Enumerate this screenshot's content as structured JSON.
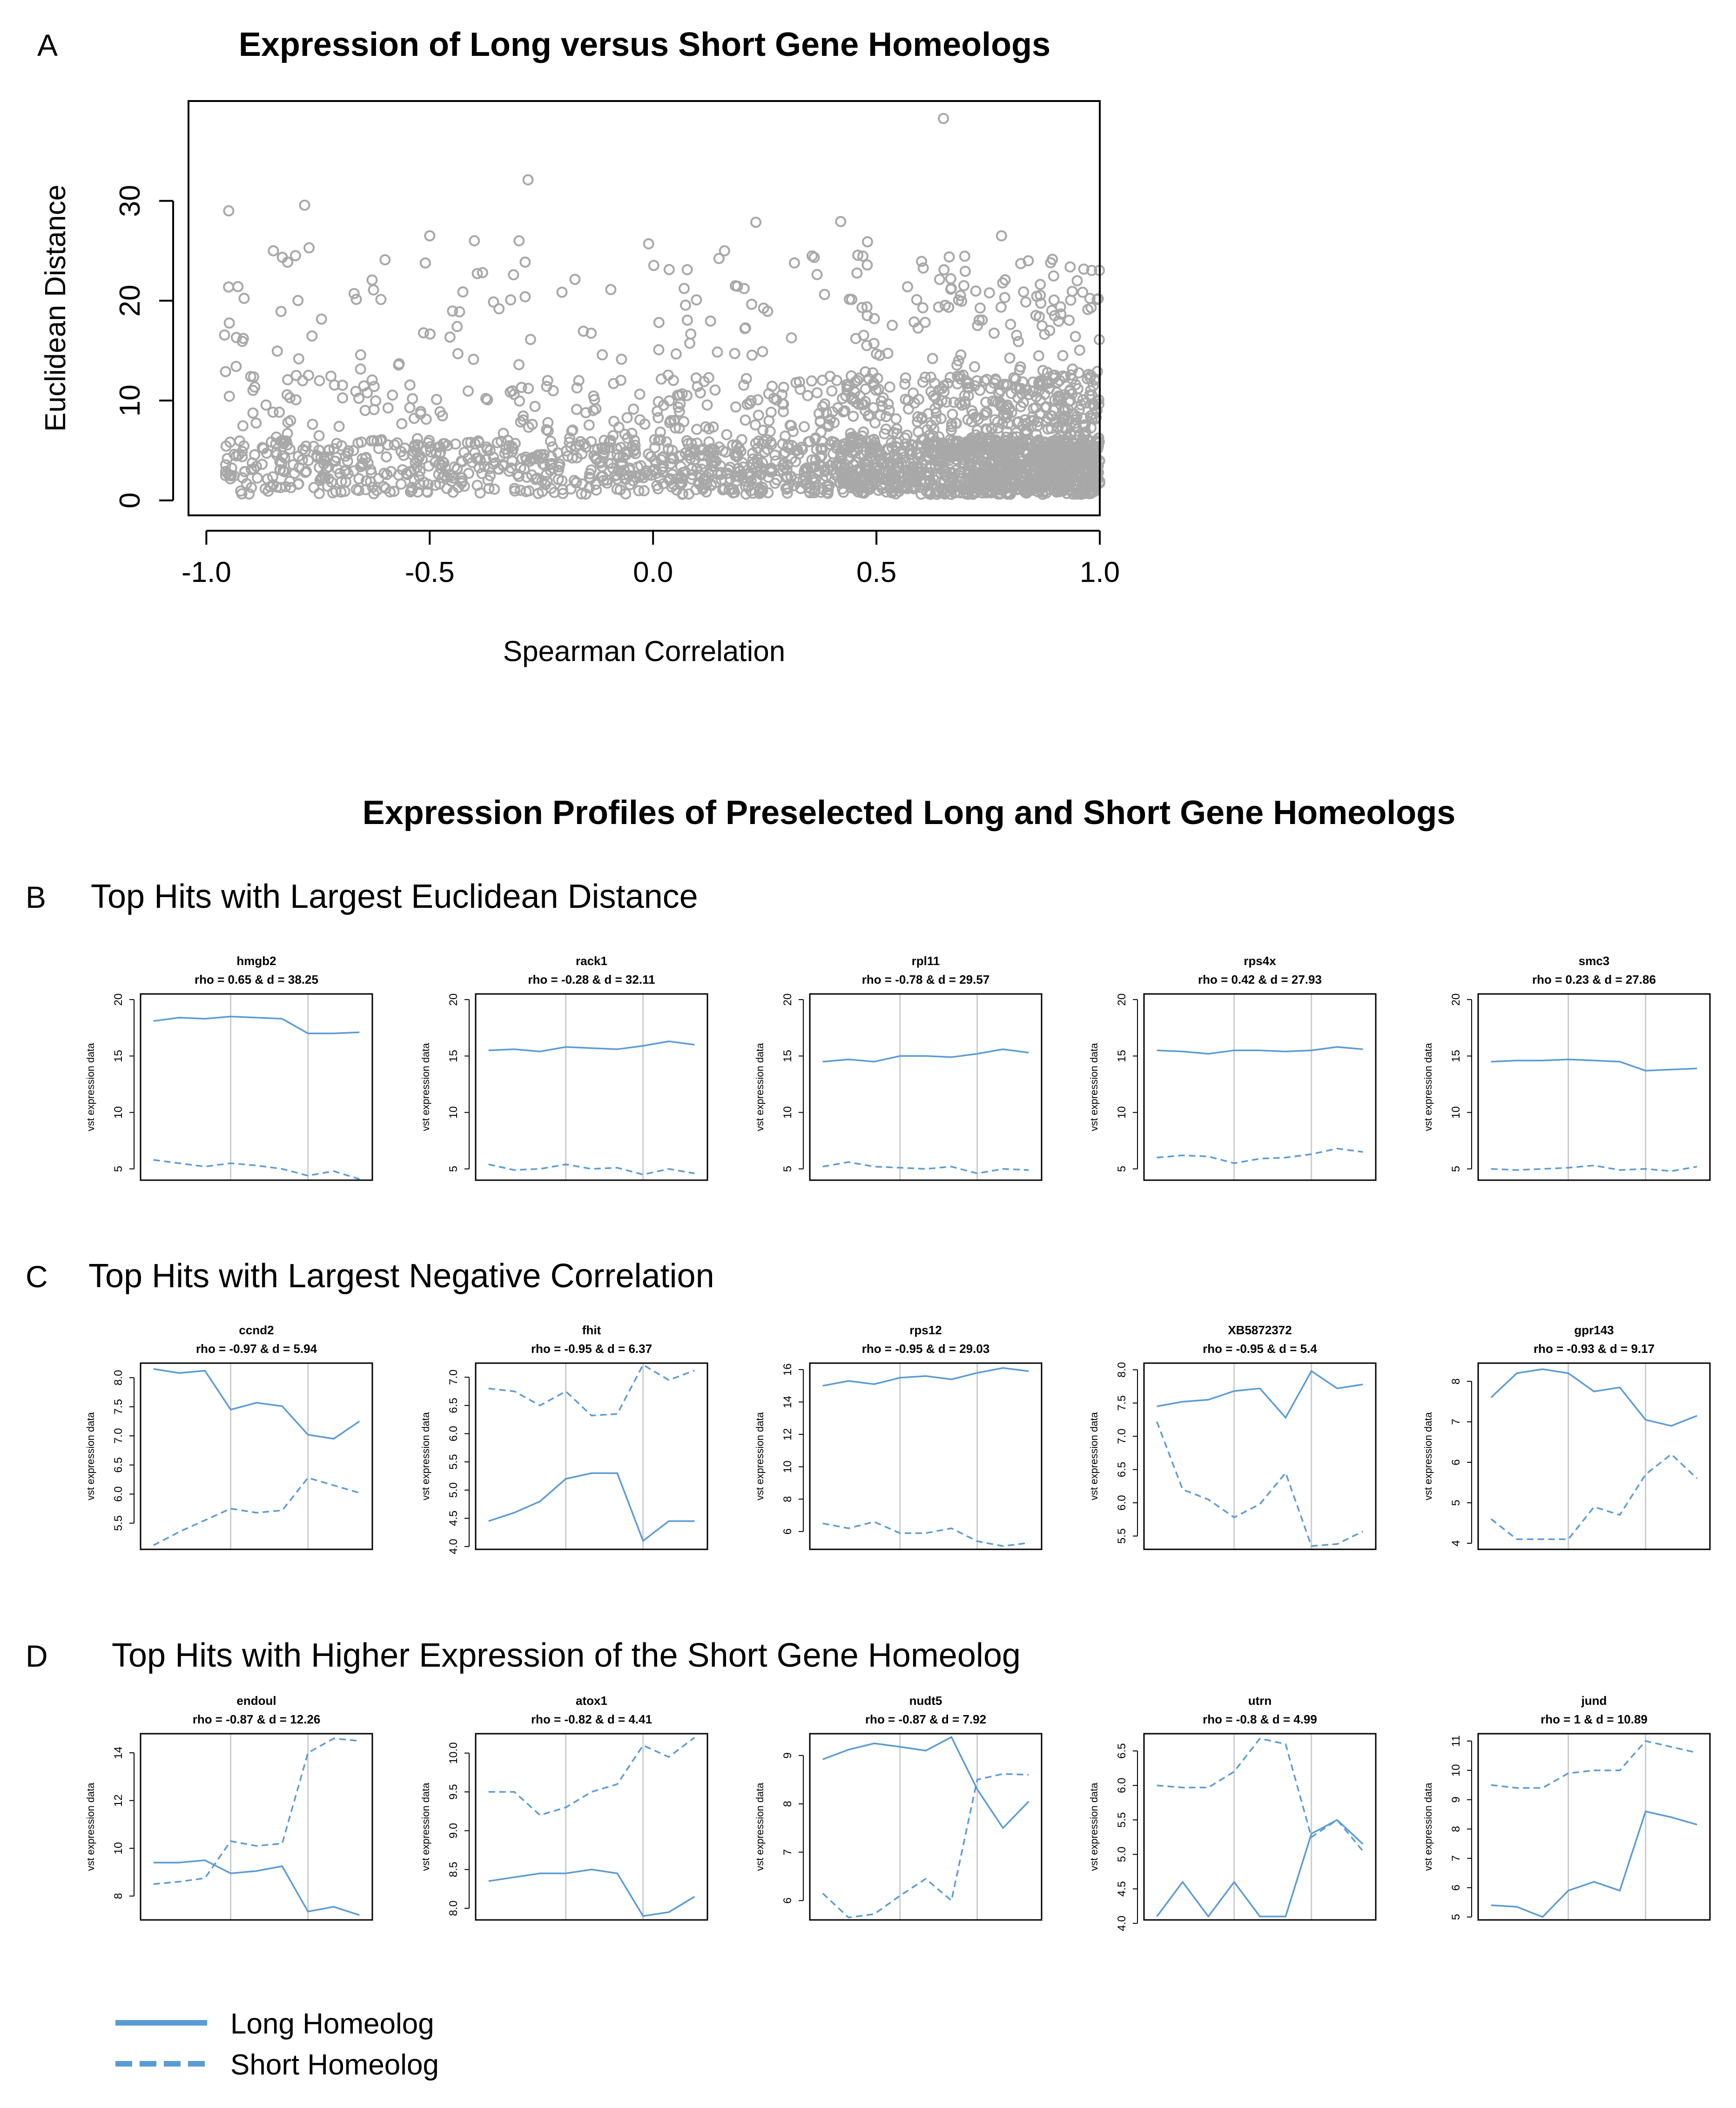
{
  "scatter": {
    "panel_letter": "A",
    "title": "Expression of Long versus Short Gene Homeologs",
    "xlabel": "Spearman Correlation",
    "ylabel": "Euclidean Distance",
    "xticks": [
      "-1.0",
      "-0.5",
      "0.0",
      "0.5",
      "1.0"
    ],
    "yticks": [
      "0",
      "10",
      "20",
      "30"
    ]
  },
  "profiles_title": "Expression Profiles of Preselected Long and Short Gene Homeologs",
  "sections": [
    {
      "letter": "B",
      "title": "Top Hits with Largest Euclidean Distance"
    },
    {
      "letter": "C",
      "title": "Top Hits with Largest Negative Correlation"
    },
    {
      "letter": "D",
      "title": "Top Hits with Higher Expression of the Short Gene Homeolog"
    }
  ],
  "panel_ylabel": "vst expression data",
  "legend": {
    "long": "Long Homeolog",
    "short": "Short Homeolog"
  },
  "colors": {
    "line": "#5b9bd5",
    "points": "#a8a8a8",
    "divider": "#cccccc"
  },
  "chart_data": [
    {
      "type": "scatter",
      "title": "Expression of Long versus Short Gene Homeologs",
      "xlabel": "Spearman Correlation",
      "ylabel": "Euclidean Distance",
      "xlim": [
        -1.04,
        1.0
      ],
      "ylim": [
        -1.5,
        40
      ],
      "n_points": 2600,
      "distribution": "many points with distances between 0 and 28 spread over rho -0.96 to 1.0, densest for rho 0.4-1.0 and distances below 10",
      "highlighted_points": [
        {
          "x": 0.65,
          "y": 38.25
        },
        {
          "x": -0.28,
          "y": 32.11
        },
        {
          "x": -0.78,
          "y": 29.57
        },
        {
          "x": 0.42,
          "y": 27.93
        },
        {
          "x": 0.23,
          "y": 27.86
        },
        {
          "x": -0.95,
          "y": 29.0
        },
        {
          "x": -0.5,
          "y": 26.5
        },
        {
          "x": -0.4,
          "y": 26.0
        },
        {
          "x": -0.01,
          "y": 25.7
        },
        {
          "x": 0.78,
          "y": 26.5
        },
        {
          "x": 0.48,
          "y": 25.9
        },
        {
          "x": -0.85,
          "y": 25.0
        },
        {
          "x": -0.77,
          "y": 25.3
        },
        {
          "x": -0.3,
          "y": 26.0
        },
        {
          "x": 0.16,
          "y": 25.0
        },
        {
          "x": 0.84,
          "y": 24.0
        },
        {
          "x": 0.89,
          "y": 23.8
        },
        {
          "x": -0.6,
          "y": 24.1
        }
      ]
    },
    {
      "type": "line",
      "gene": "hmgb2",
      "subtitle": "rho = 0.65 & d = 38.25",
      "ylim": [
        4,
        20.5
      ],
      "yticks": [
        5,
        10,
        15,
        20
      ],
      "dividers": [
        3.5,
        6.5
      ],
      "series": [
        {
          "name": "Long Homeolog",
          "values": [
            18.1,
            18.4,
            18.3,
            18.5,
            18.4,
            18.3,
            17.0,
            17.0,
            17.1
          ]
        },
        {
          "name": "Short Homeolog",
          "values": [
            5.8,
            5.5,
            5.2,
            5.5,
            5.3,
            5.0,
            4.4,
            4.8,
            4.1
          ]
        }
      ]
    },
    {
      "type": "line",
      "gene": "rack1",
      "subtitle": "rho = -0.28 & d = 32.11",
      "ylim": [
        4,
        20.5
      ],
      "yticks": [
        5,
        10,
        15,
        20
      ],
      "dividers": [
        3.5,
        6.5
      ],
      "series": [
        {
          "name": "Long Homeolog",
          "values": [
            15.5,
            15.6,
            15.4,
            15.8,
            15.7,
            15.6,
            15.9,
            16.3,
            16.0
          ]
        },
        {
          "name": "Short Homeolog",
          "values": [
            5.4,
            4.9,
            5.0,
            5.4,
            5.0,
            5.1,
            4.5,
            5.0,
            4.6
          ]
        }
      ]
    },
    {
      "type": "line",
      "gene": "rpl11",
      "subtitle": "rho = -0.78 & d = 29.57",
      "ylim": [
        4,
        20.5
      ],
      "yticks": [
        5,
        10,
        15,
        20
      ],
      "dividers": [
        3.5,
        6.5
      ],
      "series": [
        {
          "name": "Long Homeolog",
          "values": [
            14.5,
            14.7,
            14.5,
            15.0,
            15.0,
            14.9,
            15.2,
            15.6,
            15.3
          ]
        },
        {
          "name": "Short Homeolog",
          "values": [
            5.2,
            5.6,
            5.2,
            5.1,
            5.0,
            5.2,
            4.6,
            5.0,
            4.9
          ]
        }
      ]
    },
    {
      "type": "line",
      "gene": "rps4x",
      "subtitle": "rho = 0.42 & d = 27.93",
      "ylim": [
        4,
        20.5
      ],
      "yticks": [
        5,
        10,
        15,
        20
      ],
      "dividers": [
        3.5,
        6.5
      ],
      "series": [
        {
          "name": "Long Homeolog",
          "values": [
            15.5,
            15.4,
            15.2,
            15.5,
            15.5,
            15.4,
            15.5,
            15.8,
            15.6
          ]
        },
        {
          "name": "Short Homeolog",
          "values": [
            6.0,
            6.2,
            6.1,
            5.5,
            5.9,
            6.0,
            6.3,
            6.8,
            6.5
          ]
        }
      ]
    },
    {
      "type": "line",
      "gene": "smc3",
      "subtitle": "rho = 0.23 & d = 27.86",
      "ylim": [
        4,
        20.5
      ],
      "yticks": [
        5,
        10,
        15,
        20
      ],
      "dividers": [
        3.5,
        6.5
      ],
      "series": [
        {
          "name": "Long Homeolog",
          "values": [
            14.5,
            14.6,
            14.6,
            14.7,
            14.6,
            14.5,
            13.7,
            13.8,
            13.9
          ]
        },
        {
          "name": "Short Homeolog",
          "values": [
            5.0,
            4.9,
            5.0,
            5.1,
            5.3,
            4.9,
            5.0,
            4.8,
            5.2
          ]
        }
      ]
    },
    {
      "type": "line",
      "gene": "ccnd2",
      "subtitle": "rho = -0.97 & d = 5.94",
      "ylim": [
        5.05,
        8.25
      ],
      "yticks": [
        5.5,
        6.0,
        6.5,
        7.0,
        7.5,
        8.0
      ],
      "dividers": [
        3.5,
        6.5
      ],
      "series": [
        {
          "name": "Long Homeolog",
          "values": [
            8.15,
            8.08,
            8.12,
            7.45,
            7.57,
            7.51,
            7.02,
            6.95,
            7.25
          ]
        },
        {
          "name": "Short Homeolog",
          "values": [
            5.12,
            5.35,
            5.55,
            5.75,
            5.68,
            5.72,
            6.28,
            6.15,
            6.02
          ]
        }
      ]
    },
    {
      "type": "line",
      "gene": "fhit",
      "subtitle": "rho = -0.95 & d = 6.37",
      "ylim": [
        3.95,
        7.25
      ],
      "yticks": [
        4.0,
        4.5,
        5.0,
        5.5,
        6.0,
        6.5,
        7.0
      ],
      "dividers": [
        3.5,
        6.5
      ],
      "series": [
        {
          "name": "Long Homeolog",
          "values": [
            4.45,
            4.6,
            4.8,
            5.2,
            5.3,
            5.3,
            4.1,
            4.45,
            4.45
          ]
        },
        {
          "name": "Short Homeolog",
          "values": [
            6.8,
            6.75,
            6.5,
            6.75,
            6.32,
            6.35,
            7.22,
            6.95,
            7.12
          ]
        }
      ]
    },
    {
      "type": "line",
      "gene": "rps12",
      "subtitle": "rho = -0.95 & d = 29.03",
      "ylim": [
        4.9,
        16.4
      ],
      "yticks": [
        6,
        8,
        10,
        12,
        14,
        16
      ],
      "dividers": [
        3.5,
        6.5
      ],
      "series": [
        {
          "name": "Long Homeolog",
          "values": [
            15.0,
            15.3,
            15.1,
            15.5,
            15.6,
            15.4,
            15.8,
            16.1,
            15.9
          ]
        },
        {
          "name": "Short Homeolog",
          "values": [
            6.5,
            6.2,
            6.6,
            5.9,
            5.9,
            6.2,
            5.4,
            5.1,
            5.3
          ]
        }
      ]
    },
    {
      "type": "line",
      "gene": "XB5872372",
      "subtitle": "rho = -0.95 & d = 5.4",
      "ylim": [
        5.3,
        8.1
      ],
      "yticks": [
        5.5,
        6.0,
        6.5,
        7.0,
        7.5,
        8.0
      ],
      "dividers": [
        3.5,
        6.5
      ],
      "series": [
        {
          "name": "Long Homeolog",
          "values": [
            7.45,
            7.52,
            7.55,
            7.68,
            7.72,
            7.28,
            7.98,
            7.72,
            7.78
          ]
        },
        {
          "name": "Short Homeolog",
          "values": [
            7.22,
            6.2,
            6.05,
            5.78,
            5.98,
            6.45,
            5.35,
            5.38,
            5.57
          ]
        }
      ]
    },
    {
      "type": "line",
      "gene": "gpr143",
      "subtitle": "rho = -0.93 & d = 9.17",
      "ylim": [
        3.85,
        8.45
      ],
      "yticks": [
        4,
        5,
        6,
        7,
        8
      ],
      "dividers": [
        3.5,
        6.5
      ],
      "series": [
        {
          "name": "Long Homeolog",
          "values": [
            7.6,
            8.2,
            8.3,
            8.2,
            7.75,
            7.85,
            7.05,
            6.9,
            7.15
          ]
        },
        {
          "name": "Short Homeolog",
          "values": [
            4.6,
            4.1,
            4.1,
            4.1,
            4.9,
            4.7,
            5.7,
            6.2,
            5.6
          ]
        }
      ]
    },
    {
      "type": "line",
      "gene": "endoul",
      "subtitle": "rho = -0.87 & d = 12.26",
      "ylim": [
        7.0,
        14.8
      ],
      "yticks": [
        8,
        10,
        12,
        14
      ],
      "dividers": [
        3.5,
        6.5
      ],
      "series": [
        {
          "name": "Long Homeolog",
          "values": [
            9.4,
            9.4,
            9.5,
            8.95,
            9.05,
            9.25,
            7.35,
            7.55,
            7.2
          ]
        },
        {
          "name": "Short Homeolog",
          "values": [
            8.5,
            8.6,
            8.75,
            10.3,
            10.1,
            10.2,
            14.0,
            14.6,
            14.5
          ]
        }
      ]
    },
    {
      "type": "line",
      "gene": "atox1",
      "subtitle": "rho = -0.82 & d = 4.41",
      "ylim": [
        7.85,
        10.25
      ],
      "yticks": [
        8.0,
        8.5,
        9.0,
        9.5,
        10.0
      ],
      "dividers": [
        3.5,
        6.5
      ],
      "series": [
        {
          "name": "Long Homeolog",
          "values": [
            8.35,
            8.4,
            8.45,
            8.45,
            8.5,
            8.45,
            7.9,
            7.95,
            8.15
          ]
        },
        {
          "name": "Short Homeolog",
          "values": [
            9.5,
            9.5,
            9.2,
            9.3,
            9.5,
            9.6,
            10.1,
            9.95,
            10.2
          ]
        }
      ]
    },
    {
      "type": "line",
      "gene": "nudt5",
      "subtitle": "rho = -0.87 & d = 7.92",
      "ylim": [
        5.6,
        9.45
      ],
      "yticks": [
        6,
        7,
        8,
        9
      ],
      "dividers": [
        3.5,
        6.5
      ],
      "series": [
        {
          "name": "Long Homeolog",
          "values": [
            8.92,
            9.12,
            9.25,
            9.18,
            9.1,
            9.38,
            8.3,
            7.5,
            8.05
          ]
        },
        {
          "name": "Short Homeolog",
          "values": [
            6.15,
            5.65,
            5.72,
            6.1,
            6.45,
            6.0,
            8.5,
            8.62,
            8.6
          ]
        }
      ]
    },
    {
      "type": "line",
      "gene": "utrn",
      "subtitle": "rho = -0.8 & d = 4.99",
      "ylim": [
        4.05,
        6.75
      ],
      "yticks": [
        4.0,
        4.5,
        5.0,
        5.5,
        6.0,
        6.5
      ],
      "dividers": [
        3.5,
        6.5
      ],
      "series": [
        {
          "name": "Long Homeolog",
          "values": [
            4.1,
            4.6,
            4.1,
            4.6,
            4.1,
            4.1,
            5.3,
            5.5,
            5.15
          ]
        },
        {
          "name": "Short Homeolog",
          "values": [
            6.0,
            5.97,
            5.97,
            6.2,
            6.68,
            6.6,
            5.25,
            5.5,
            5.05
          ]
        }
      ]
    },
    {
      "type": "line",
      "gene": "jund",
      "subtitle": "rho = 1 & d = 10.89",
      "ylim": [
        4.9,
        11.25
      ],
      "yticks": [
        5,
        6,
        7,
        8,
        9,
        10,
        11
      ],
      "dividers": [
        3.5,
        6.5
      ],
      "series": [
        {
          "name": "Long Homeolog",
          "values": [
            5.4,
            5.35,
            5.0,
            5.9,
            6.2,
            5.9,
            8.6,
            8.4,
            8.15
          ]
        },
        {
          "name": "Short Homeolog",
          "values": [
            9.5,
            9.4,
            9.4,
            9.9,
            10.0,
            10.0,
            11.0,
            10.8,
            10.6
          ]
        }
      ]
    }
  ]
}
